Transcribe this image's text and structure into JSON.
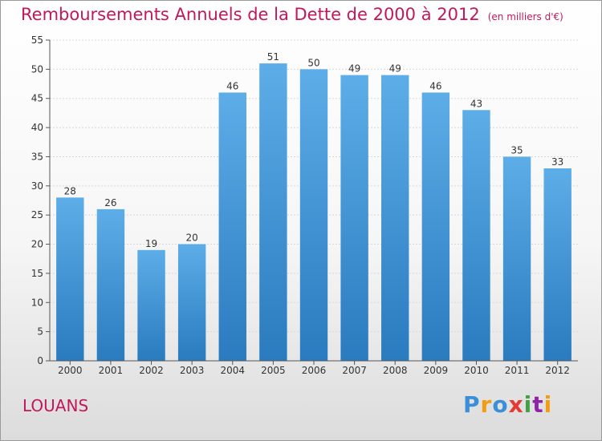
{
  "header": {
    "title": "Remboursements Annuels de la Dette de 2000 à 2012",
    "subtitle": "(en milliers d'€)"
  },
  "footer": {
    "city": "LOUANS",
    "logo_letters": [
      "P",
      "r",
      "o",
      "x",
      "i",
      "t",
      "i"
    ],
    "logo_colors": [
      "#3a8fd8",
      "#f39c12",
      "#3a8fd8",
      "#e53935",
      "#43a047",
      "#8e24aa",
      "#f39c12"
    ]
  },
  "chart_data": {
    "type": "bar",
    "categories": [
      "2000",
      "2001",
      "2002",
      "2003",
      "2004",
      "2005",
      "2006",
      "2007",
      "2008",
      "2009",
      "2010",
      "2011",
      "2012"
    ],
    "values": [
      28,
      26,
      19,
      20,
      46,
      51,
      50,
      49,
      49,
      46,
      43,
      35,
      33
    ],
    "ylim": [
      0,
      55
    ],
    "yticks": [
      0,
      5,
      10,
      15,
      20,
      25,
      30,
      35,
      40,
      45,
      50,
      55
    ],
    "grid": true,
    "bar_color_top": "#5dade8",
    "bar_color_bottom": "#2a7bbf"
  }
}
